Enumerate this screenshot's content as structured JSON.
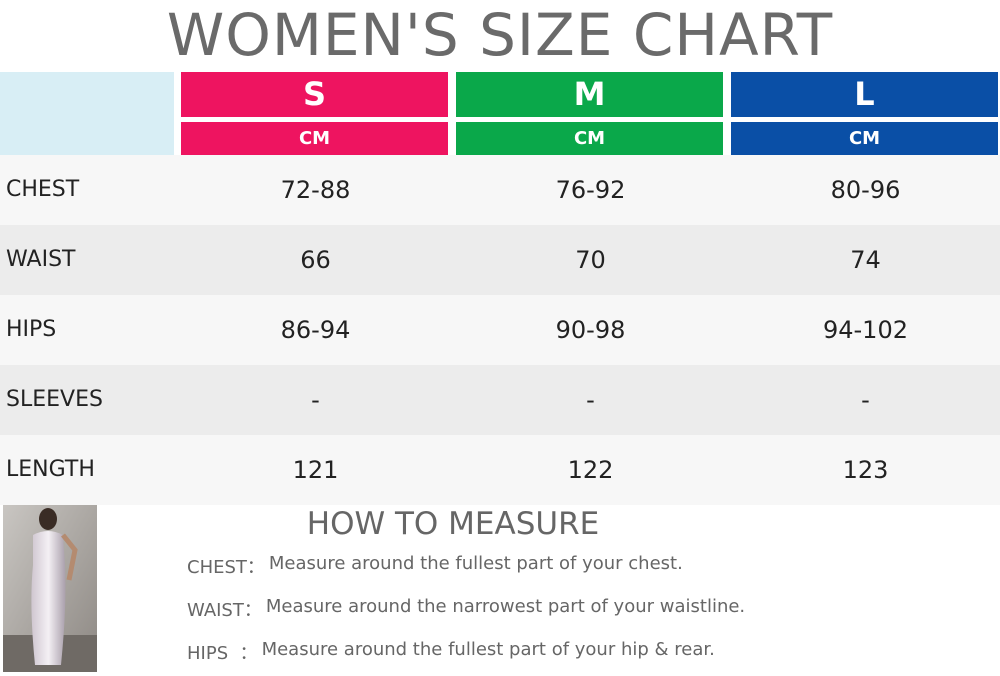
{
  "title": "WOMEN'S SIZE CHART",
  "table": {
    "sizes": [
      {
        "size": "S",
        "unit": "CM",
        "color": "#ee1460"
      },
      {
        "size": "M",
        "unit": "CM",
        "color": "#0aa84a"
      },
      {
        "size": "L",
        "unit": "CM",
        "color": "#0a4fa6"
      }
    ],
    "rows": [
      {
        "label": "CHEST",
        "values": [
          "72-88",
          "76-92",
          "80-96"
        ]
      },
      {
        "label": "WAIST",
        "values": [
          "66",
          "70",
          "74"
        ]
      },
      {
        "label": "HIPS",
        "values": [
          "86-94",
          "90-98",
          "94-102"
        ]
      },
      {
        "label": "SLEEVES",
        "values": [
          "-",
          "-",
          "-"
        ]
      },
      {
        "label": "LENGTH",
        "values": [
          "121",
          "122",
          "123"
        ]
      }
    ]
  },
  "measure": {
    "title": "HOW TO MEASURE",
    "items": [
      {
        "label": "CHEST：",
        "text": "Measure around the fullest part of your chest."
      },
      {
        "label": "WAIST：",
        "text": "Measure around the narrowest part of your waistline."
      },
      {
        "label": "HIPS  ：",
        "text": "Measure around the fullest part of your hip & rear."
      }
    ]
  }
}
